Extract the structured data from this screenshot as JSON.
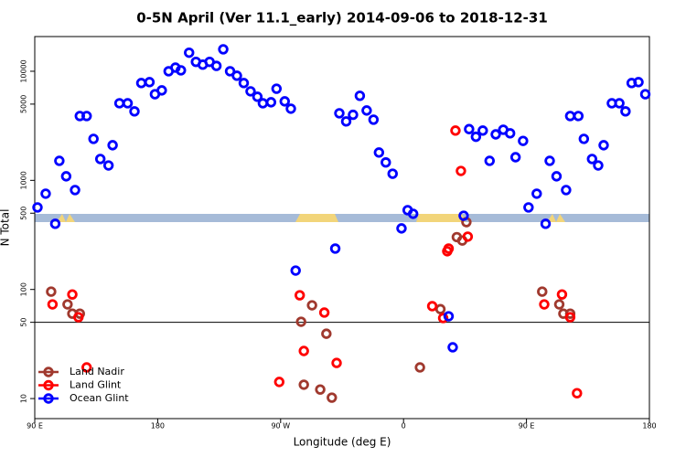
{
  "chart_data": {
    "type": "scatter",
    "title": "0-5N April (Ver 11.1_early)   2014-09-06 to 2018-12-31",
    "xlabel": "Longitude (deg E)",
    "ylabel": "N Total",
    "xlim": [
      90,
      540
    ],
    "xticks": [
      {
        "value": 90,
        "label": "90 E"
      },
      {
        "value": 180,
        "label": "180"
      },
      {
        "value": 270,
        "label": "90 W"
      },
      {
        "value": 360,
        "label": "0"
      },
      {
        "value": 450,
        "label": "90 E"
      },
      {
        "value": 540,
        "label": "180"
      }
    ],
    "ylim": [
      6.55,
      20800
    ],
    "ylog": true,
    "yticks": [
      10,
      50,
      100,
      500,
      1000,
      5000,
      10000
    ],
    "hline": 50,
    "legend": "bottom-left",
    "series": [
      {
        "name": "Land Nadir",
        "color": "#a0392e",
        "x": [
          102,
          114,
          117.5,
          123,
          285,
          293,
          303.5,
          287,
          299,
          307.5,
          372,
          387,
          399,
          403,
          406,
          461.5,
          474,
          477,
          482
        ],
        "values": [
          95.5,
          73,
          60,
          60,
          50.6,
          71.6,
          39.3,
          13.4,
          12.1,
          10.2,
          19.3,
          66,
          302,
          281,
          414,
          95.5,
          73,
          60,
          60
        ]
      },
      {
        "name": "Land Glint",
        "color": "#ff0000",
        "x": [
          103,
          117.5,
          122,
          128,
          269,
          284,
          287,
          302,
          311,
          381,
          389,
          392,
          393,
          398,
          402,
          407,
          463,
          476,
          482,
          487
        ],
        "values": [
          73,
          90,
          55.7,
          19.3,
          14.2,
          88.5,
          27.3,
          61.4,
          21.2,
          70.3,
          54.7,
          224,
          237,
          2860,
          1220,
          305,
          73,
          90,
          55.7,
          11.2
        ]
      },
      {
        "name": "Ocean Glint",
        "color": "#0000ff",
        "x": [
          92,
          98,
          105,
          108,
          113,
          119.5,
          123,
          128,
          133,
          138,
          144,
          147,
          152,
          158,
          163,
          168,
          174,
          178,
          183,
          188,
          193,
          197,
          203,
          208,
          213,
          218,
          223,
          228,
          233,
          238,
          243,
          248,
          253,
          257,
          263,
          267,
          273,
          277.5,
          281,
          310,
          313,
          318,
          323,
          328,
          333,
          338,
          342,
          347,
          352,
          358.5,
          363,
          367,
          393,
          396,
          404,
          408,
          413,
          418,
          423,
          427.5,
          433,
          438,
          442,
          447.5,
          451.5,
          457.5,
          464,
          467,
          472,
          479,
          482,
          488,
          492,
          498,
          502.5,
          506.5,
          512.5,
          518,
          522.5,
          527,
          532,
          537
        ],
        "values": [
          565,
          755,
          400,
          1510,
          1090,
          815,
          3890,
          3890,
          2400,
          1570,
          1370,
          2100,
          5090,
          5090,
          4290,
          7800,
          7950,
          6160,
          6680,
          10000,
          10800,
          10200,
          14800,
          12200,
          11500,
          12200,
          11200,
          15900,
          10000,
          9100,
          7800,
          6550,
          5840,
          5090,
          5200,
          6920,
          5300,
          4540,
          149,
          237,
          4120,
          3470,
          3990,
          5960,
          4370,
          3600,
          1800,
          1460,
          1150,
          363,
          533,
          494,
          56.8,
          29.5,
          474,
          2950,
          2510,
          2860,
          1510,
          2640,
          2910,
          2700,
          1630,
          2300,
          565,
          755,
          400,
          1510,
          1090,
          815,
          3890,
          3890,
          2400,
          1570,
          1370,
          2100,
          5090,
          5090,
          4290,
          7800,
          7950,
          6160
        ]
      }
    ]
  }
}
